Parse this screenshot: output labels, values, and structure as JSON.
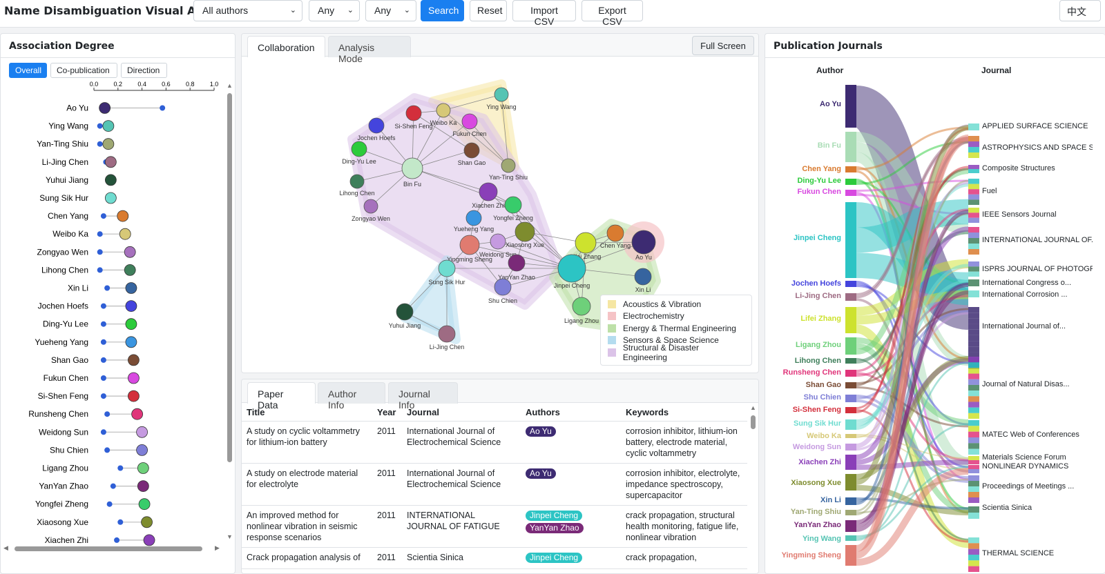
{
  "header": {
    "title": "Name Disambiguation Visual Analysis",
    "author_select": "All authors",
    "select_two": "Any",
    "select_three": "Any",
    "search_label": "Search",
    "reset_label": "Reset",
    "import_label": "Import CSV",
    "export_label": "Export CSV",
    "lang_label": "中文"
  },
  "association": {
    "title": "Association Degree",
    "filters": [
      "Overall",
      "Co-publication",
      "Direction"
    ],
    "axis_ticks": [
      "0.0",
      "0.2",
      "0.4",
      "0.6",
      "0.8",
      "1.0"
    ],
    "rows": [
      {
        "name": "Ao Yu",
        "small": 0.57,
        "big": 0.09,
        "color": "#3d2b72"
      },
      {
        "name": "Ying Wang",
        "small": 0.05,
        "big": 0.12,
        "color": "#55c4b3"
      },
      {
        "name": "Yan-Ting Shiu",
        "small": 0.05,
        "big": 0.12,
        "color": "#9fa873"
      },
      {
        "name": "Li-Jing Chen",
        "small": 0.1,
        "big": 0.14,
        "color": "#9e6b83"
      },
      {
        "name": "Yuhui Jiang",
        "small": 0.14,
        "big": 0.14,
        "color": "#24533a"
      },
      {
        "name": "Sung Sik Hur",
        "small": 0.14,
        "big": 0.14,
        "color": "#6fdcd0"
      },
      {
        "name": "Chen Yang",
        "small": 0.08,
        "big": 0.24,
        "color": "#d97b30"
      },
      {
        "name": "Weibo Ka",
        "small": 0.05,
        "big": 0.26,
        "color": "#d6c877"
      },
      {
        "name": "Zongyao Wen",
        "small": 0.05,
        "big": 0.3,
        "color": "#a671bd"
      },
      {
        "name": "Lihong Chen",
        "small": 0.05,
        "big": 0.3,
        "color": "#3f7f5b"
      },
      {
        "name": "Xin Li",
        "small": 0.11,
        "big": 0.31,
        "color": "#36649f"
      },
      {
        "name": "Jochen Hoefs",
        "small": 0.08,
        "big": 0.31,
        "color": "#4444dd"
      },
      {
        "name": "Ding-Yu Lee",
        "small": 0.08,
        "big": 0.31,
        "color": "#2ccb3b"
      },
      {
        "name": "Yueheng Yang",
        "small": 0.08,
        "big": 0.31,
        "color": "#3a95e0"
      },
      {
        "name": "Shan Gao",
        "small": 0.08,
        "big": 0.33,
        "color": "#7a4c35"
      },
      {
        "name": "Fukun Chen",
        "small": 0.08,
        "big": 0.33,
        "color": "#d849e0"
      },
      {
        "name": "Si-Shen Feng",
        "small": 0.08,
        "big": 0.33,
        "color": "#d32f3c"
      },
      {
        "name": "Runsheng Chen",
        "small": 0.11,
        "big": 0.36,
        "color": "#e0357a"
      },
      {
        "name": "Weidong Sun",
        "small": 0.08,
        "big": 0.4,
        "color": "#c59ae0"
      },
      {
        "name": "Shu Chien",
        "small": 0.11,
        "big": 0.4,
        "color": "#7e7ed6"
      },
      {
        "name": "Ligang Zhou",
        "small": 0.22,
        "big": 0.41,
        "color": "#6ed07a"
      },
      {
        "name": "YanYan Zhao",
        "small": 0.16,
        "big": 0.41,
        "color": "#7a2a78"
      },
      {
        "name": "Yongfei Zheng",
        "small": 0.13,
        "big": 0.42,
        "color": "#38cc6b"
      },
      {
        "name": "Xiaosong Xue",
        "small": 0.22,
        "big": 0.44,
        "color": "#7e8c2e"
      },
      {
        "name": "Xiachen Zhi",
        "small": 0.19,
        "big": 0.46,
        "color": "#8a3fb8"
      }
    ]
  },
  "collab": {
    "tabs": [
      "Collaboration",
      "Analysis Mode"
    ],
    "fullscreen_label": "Full Screen",
    "legend": [
      {
        "label": "Acoustics & Vibration",
        "color": "#f5e6a3"
      },
      {
        "label": "Electrochemistry",
        "color": "#f5c3c6"
      },
      {
        "label": "Energy & Thermal Engineering",
        "color": "#bde0a8"
      },
      {
        "label": "Sensors & Space Science",
        "color": "#b4dcef"
      },
      {
        "label": "Structural & Disaster Engineering",
        "color": "#dbc3e8"
      }
    ],
    "nodes": [
      {
        "label": "Ying Wang",
        "color": "#55c4b3"
      },
      {
        "label": "Si-Shen Feng",
        "color": "#d32f3c"
      },
      {
        "label": "Weibo Ka",
        "color": "#d6c877"
      },
      {
        "label": "Fukun Chen",
        "color": "#d849e0"
      },
      {
        "label": "Jochen Hoefs",
        "color": "#4444dd"
      },
      {
        "label": "Ding-Yu Lee",
        "color": "#2ccb3b"
      },
      {
        "label": "Shan Gao",
        "color": "#7a4c35"
      },
      {
        "label": "Yan-Ting Shiu",
        "color": "#9fa873"
      },
      {
        "label": "Bin Fu",
        "color": "#c3e8c9"
      },
      {
        "label": "Lihong Chen",
        "color": "#3f7f5b"
      },
      {
        "label": "Zongyao Wen",
        "color": "#a671bd"
      },
      {
        "label": "Xiachen Zhi",
        "color": "#8a3fb8"
      },
      {
        "label": "Yongfei Zheng",
        "color": "#38cc6b"
      },
      {
        "label": "Yueheng Yang",
        "color": "#3a95e0"
      },
      {
        "label": "Xiaosong Xue",
        "color": "#7e8c2e"
      },
      {
        "label": "Yingming Sheng",
        "color": "#e07b70"
      },
      {
        "label": "Weidong Sun",
        "color": "#c59ae0"
      },
      {
        "label": "Lifei Zhang",
        "color": "#cde22e"
      },
      {
        "label": "Chen Yang",
        "color": "#d97b30"
      },
      {
        "label": "Ao Yu",
        "color": "#3d2b72"
      },
      {
        "label": "Sung Sik Hur",
        "color": "#6fdcd0"
      },
      {
        "label": "YanYan Zhao",
        "color": "#7a2a78"
      },
      {
        "label": "Jinpei Cheng",
        "color": "#2cc4c4"
      },
      {
        "label": "Xin Li",
        "color": "#36649f"
      },
      {
        "label": "Shu Chien",
        "color": "#7e7ed6"
      },
      {
        "label": "Ligang Zhou",
        "color": "#6ed07a"
      },
      {
        "label": "Yuhui Jiang",
        "color": "#24533a"
      },
      {
        "label": "Li-Jing Chen",
        "color": "#9e6b83"
      }
    ]
  },
  "papers": {
    "tabs": [
      "Paper Data",
      "Author Info",
      "Journal Info"
    ],
    "columns": [
      "Title",
      "Year",
      "Journal",
      "Authors",
      "Keywords"
    ],
    "rows": [
      {
        "title": "A study on cyclic voltammetry for lithium-ion battery",
        "year": "2011",
        "journal": "International Journal of Electrochemical Science",
        "authors": [
          {
            "name": "Ao Yu",
            "color": "#3d2b72"
          }
        ],
        "keywords": "corrosion inhibitor, lithium-ion battery, electrode material, cyclic voltammetry"
      },
      {
        "title": "A study on electrode material for electrolyte",
        "year": "2011",
        "journal": "International Journal of Electrochemical Science",
        "authors": [
          {
            "name": "Ao Yu",
            "color": "#3d2b72"
          }
        ],
        "keywords": "corrosion inhibitor, electrolyte, impedance spectroscopy, supercapacitor"
      },
      {
        "title": "An improved method for nonlinear vibration in seismic response scenarios",
        "year": "2011",
        "journal": "INTERNATIONAL JOURNAL OF FATIGUE",
        "authors": [
          {
            "name": "Jinpei Cheng",
            "color": "#2cc4c4"
          },
          {
            "name": "YanYan Zhao",
            "color": "#7a2a78"
          }
        ],
        "keywords": "crack propagation, structural health monitoring, fatigue life, nonlinear vibration"
      },
      {
        "title": "Crack propagation analysis of",
        "year": "2011",
        "journal": "Scientia Sinica",
        "authors": [
          {
            "name": "Jinpei Cheng",
            "color": "#2cc4c4"
          }
        ],
        "keywords": "crack propagation,"
      }
    ]
  },
  "journals": {
    "title": "Publication Journals",
    "author_header": "Author",
    "journal_header": "Journal",
    "authors": [
      {
        "name": "Ao Yu",
        "color": "#3d2b72"
      },
      {
        "name": "Bin Fu",
        "color": "#a9dcb5"
      },
      {
        "name": "Chen Yang",
        "color": "#d97b30"
      },
      {
        "name": "Ding-Yu Lee",
        "color": "#2ccb3b"
      },
      {
        "name": "Fukun Chen",
        "color": "#d849e0"
      },
      {
        "name": "Jinpei Cheng",
        "color": "#2cc4c4"
      },
      {
        "name": "Jochen Hoefs",
        "color": "#4444dd"
      },
      {
        "name": "Li-Jing Chen",
        "color": "#9e6b83"
      },
      {
        "name": "Lifei Zhang",
        "color": "#cde22e"
      },
      {
        "name": "Ligang Zhou",
        "color": "#6ed07a"
      },
      {
        "name": "Lihong Chen",
        "color": "#3f7f5b"
      },
      {
        "name": "Runsheng Chen",
        "color": "#e0357a"
      },
      {
        "name": "Shan Gao",
        "color": "#7a4c35"
      },
      {
        "name": "Shu Chien",
        "color": "#7e7ed6"
      },
      {
        "name": "Si-Shen Feng",
        "color": "#d32f3c"
      },
      {
        "name": "Sung Sik Hur",
        "color": "#6fdcd0"
      },
      {
        "name": "Weibo Ka",
        "color": "#d6c877"
      },
      {
        "name": "Weidong Sun",
        "color": "#c59ae0"
      },
      {
        "name": "Xiachen Zhi",
        "color": "#8a3fb8"
      },
      {
        "name": "Xiaosong Xue",
        "color": "#7e8c2e"
      },
      {
        "name": "Xin Li",
        "color": "#36649f"
      },
      {
        "name": "Yan-Ting Shiu",
        "color": "#9fa873"
      },
      {
        "name": "YanYan Zhao",
        "color": "#7a2a78"
      },
      {
        "name": "Ying Wang",
        "color": "#55c4b3"
      },
      {
        "name": "Yingming Sheng",
        "color": "#e07b70"
      }
    ],
    "journals": [
      "APPLIED SURFACE SCIENCE",
      "ASTROPHYSICS AND SPACE S...",
      "Composite Structures",
      "Fuel",
      "IEEE Sensors Journal",
      "INTERNATIONAL JOURNAL OF...",
      "ISPRS JOURNAL OF PHOTOGR...",
      "International Congress o...",
      "International Corrosion ...",
      "International Journal of...",
      "Journal of Natural Disas...",
      "MATEC Web of Conferences",
      "Materials Science Forum",
      "NONLINEAR DYNAMICS",
      "Proceedings of Meetings ...",
      "Scientia Sinica",
      "THERMAL SCIENCE"
    ]
  }
}
